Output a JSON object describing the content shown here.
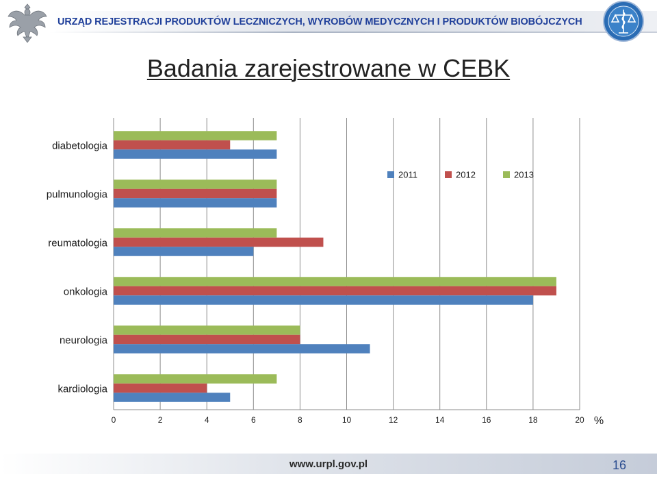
{
  "header": {
    "title": "URZĄD REJESTRACJI PRODUKTÓW LECZNICZYCH, WYROBÓW MEDYCZNYCH I PRODUKTÓW BIOBÓJCZYCH",
    "left_logo": "polish-eagle-emblem",
    "right_logo": "urpl-logo"
  },
  "slide": {
    "title": "Badania zarejestrowane w CEBK"
  },
  "chart_data": {
    "type": "bar",
    "orientation": "horizontal",
    "title": "",
    "xlabel": "",
    "ylabel": "",
    "unit": "%",
    "categories": [
      "diabetologia",
      "pulmunologia",
      "reumatologia",
      "onkologia",
      "neurologia",
      "kardiologia"
    ],
    "series": [
      {
        "name": "2011",
        "color": "#4f81bd",
        "values": [
          7,
          7,
          6,
          18,
          11,
          5
        ]
      },
      {
        "name": "2012",
        "color": "#c0504d",
        "values": [
          5,
          7,
          9,
          19,
          8,
          4
        ]
      },
      {
        "name": "2013",
        "color": "#9bbb59",
        "values": [
          7,
          7,
          7,
          19,
          8,
          7
        ]
      }
    ],
    "xlim": [
      0,
      20
    ],
    "xticks": [
      0,
      2,
      4,
      6,
      8,
      10,
      12,
      14,
      16,
      18,
      20
    ],
    "grid": "vertical",
    "legend": "top-right"
  },
  "footer": {
    "url": "www.urpl.gov.pl",
    "page_number": "16"
  }
}
